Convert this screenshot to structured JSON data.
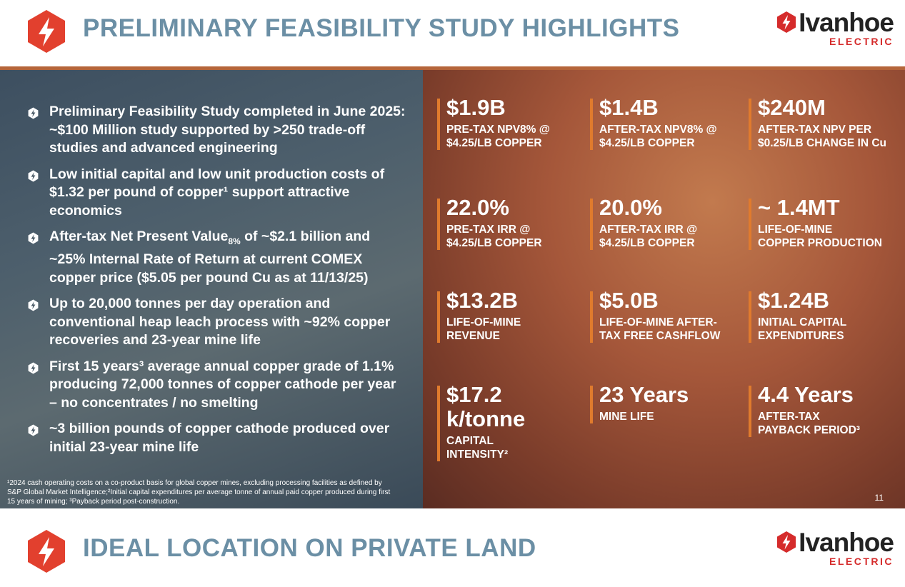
{
  "header": {
    "title": "PRELIMINARY FEASIBILITY STUDY HIGHLIGHTS",
    "brand": "Ivanhoe",
    "brand_sub": "ELECTRIC"
  },
  "left": {
    "bullets": [
      [
        "Preliminary Feasibility Study completed in June 2025: ~$100 Million study supported by >250 trade-off studies and advanced engineering"
      ],
      [
        "Low initial capital and low unit production costs of $1.32 per pound of copper¹ support attractive economics"
      ],
      [
        "After-tax Net Present Value",
        "8%",
        " of ~$2.1 billion and ~25% Internal Rate of Return at current COMEX copper price ($5.05 per pound Cu as at 11/13/25)"
      ],
      [
        "Up to 20,000 tonnes per day operation and conventional heap leach process with ~92% copper recoveries and 23-year mine life"
      ],
      [
        "First 15 years³ average annual copper grade of 1.1% producing 72,000 tonnes of copper cathode per year – no concentrates / no smelting"
      ],
      [
        "~3 billion pounds of copper cathode produced over initial 23-year mine life"
      ]
    ],
    "footnote": "¹2024 cash operating costs on a co-product basis for global copper mines, excluding processing facilities as defined by S&P Global Market Intelligence;²Initial capital expenditures per average tonne of annual paid copper produced during first 15 years of mining; ³Payback period post-construction."
  },
  "metrics": [
    {
      "value": "$1.9B",
      "label": [
        "PRE-TAX NPV8% @",
        "$4.25/LB COPPER"
      ]
    },
    {
      "value": "$1.4B",
      "label": [
        "AFTER-TAX NPV8% @",
        "$4.25/LB COPPER"
      ]
    },
    {
      "value": "$240M",
      "label": [
        "AFTER-TAX NPV PER",
        "$0.25/LB CHANGE IN Cu"
      ]
    },
    {
      "value": "22.0%",
      "label": [
        "PRE-TAX IRR @",
        "$4.25/LB COPPER"
      ]
    },
    {
      "value": "20.0%",
      "label": [
        "AFTER-TAX IRR @",
        "$4.25/LB COPPER"
      ]
    },
    {
      "value": "~ 1.4MT",
      "label": [
        "LIFE-OF-MINE",
        "COPPER PRODUCTION"
      ]
    },
    {
      "value": "$13.2B",
      "label": [
        "LIFE-OF-MINE",
        "REVENUE"
      ]
    },
    {
      "value": "$5.0B",
      "label": [
        "LIFE-OF-MINE AFTER-",
        "TAX FREE CASHFLOW"
      ]
    },
    {
      "value": "$1.24B",
      "label": [
        "INITIAL CAPITAL",
        "EXPENDITURES"
      ]
    },
    {
      "value": "$17.2 k/tonne",
      "label": [
        "CAPITAL INTENSITY²"
      ]
    },
    {
      "value": "23 Years",
      "label": [
        "MINE LIFE"
      ]
    },
    {
      "value": "4.4 Years",
      "label": [
        "AFTER-TAX",
        "PAYBACK PERIOD³"
      ]
    }
  ],
  "page_number": "11",
  "next": {
    "title": "IDEAL LOCATION ON PRIVATE LAND",
    "brand": "Ivanhoe",
    "brand_sub": "ELECTRIC"
  }
}
